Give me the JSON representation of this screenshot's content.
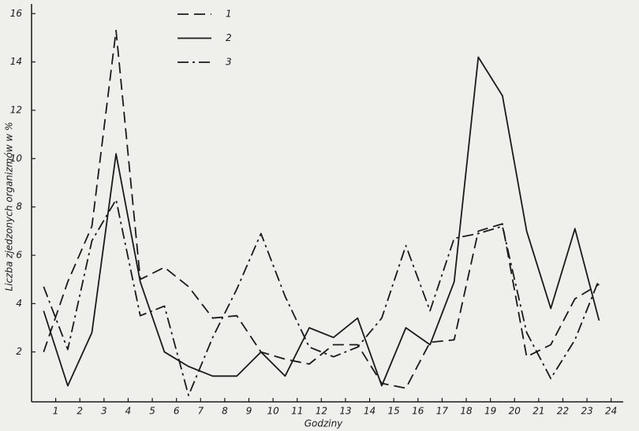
{
  "chart_data": {
    "type": "line",
    "x_label": "Godziny",
    "y_label": "Liczba zjedzonych organizmów w %",
    "x": [
      0.5,
      1.5,
      2.5,
      3.5,
      4.5,
      5.5,
      6.5,
      7.5,
      8.5,
      9.5,
      10.5,
      11.5,
      12.5,
      13.5,
      14.5,
      15.5,
      16.5,
      17.5,
      18.5,
      19.5,
      20.5,
      21.5,
      22.5,
      23.5
    ],
    "series": [
      {
        "name": "1",
        "color": "#1a1a1a",
        "dash": "dashed",
        "values": [
          2.0,
          4.9,
          7.2,
          15.3,
          5.0,
          5.5,
          4.7,
          3.4,
          3.5,
          2.0,
          1.7,
          1.5,
          2.3,
          2.3,
          0.7,
          0.5,
          2.4,
          2.5,
          7.0,
          7.3,
          1.8,
          2.3,
          4.2,
          4.8
        ]
      },
      {
        "name": "2",
        "color": "#1a1a1a",
        "dash": "solid",
        "values": [
          3.7,
          0.6,
          2.8,
          10.2,
          4.9,
          2.0,
          1.4,
          1.0,
          1.0,
          2.0,
          1.0,
          3.0,
          2.6,
          3.4,
          0.6,
          3.0,
          2.3,
          4.9,
          14.2,
          12.6,
          7.0,
          3.8,
          7.1,
          3.3
        ]
      },
      {
        "name": "3",
        "color": "#1a1a1a",
        "dash": "dashdot",
        "values": [
          4.7,
          2.1,
          6.6,
          8.3,
          3.5,
          3.9,
          0.2,
          2.6,
          4.6,
          6.9,
          4.3,
          2.2,
          1.8,
          2.2,
          3.4,
          6.4,
          3.7,
          6.7,
          6.9,
          7.2,
          2.8,
          0.9,
          2.5,
          5.0
        ]
      }
    ],
    "xlim": [
      0,
      24.5
    ],
    "xticks": [
      1,
      2,
      3,
      4,
      5,
      6,
      7,
      8,
      9,
      10,
      11,
      12,
      13,
      14,
      15,
      16,
      17,
      18,
      19,
      20,
      21,
      22,
      23,
      24
    ],
    "ylim": [
      0,
      16.4
    ],
    "yticks": [
      2,
      4,
      6,
      8,
      10,
      12,
      14,
      16
    ]
  }
}
